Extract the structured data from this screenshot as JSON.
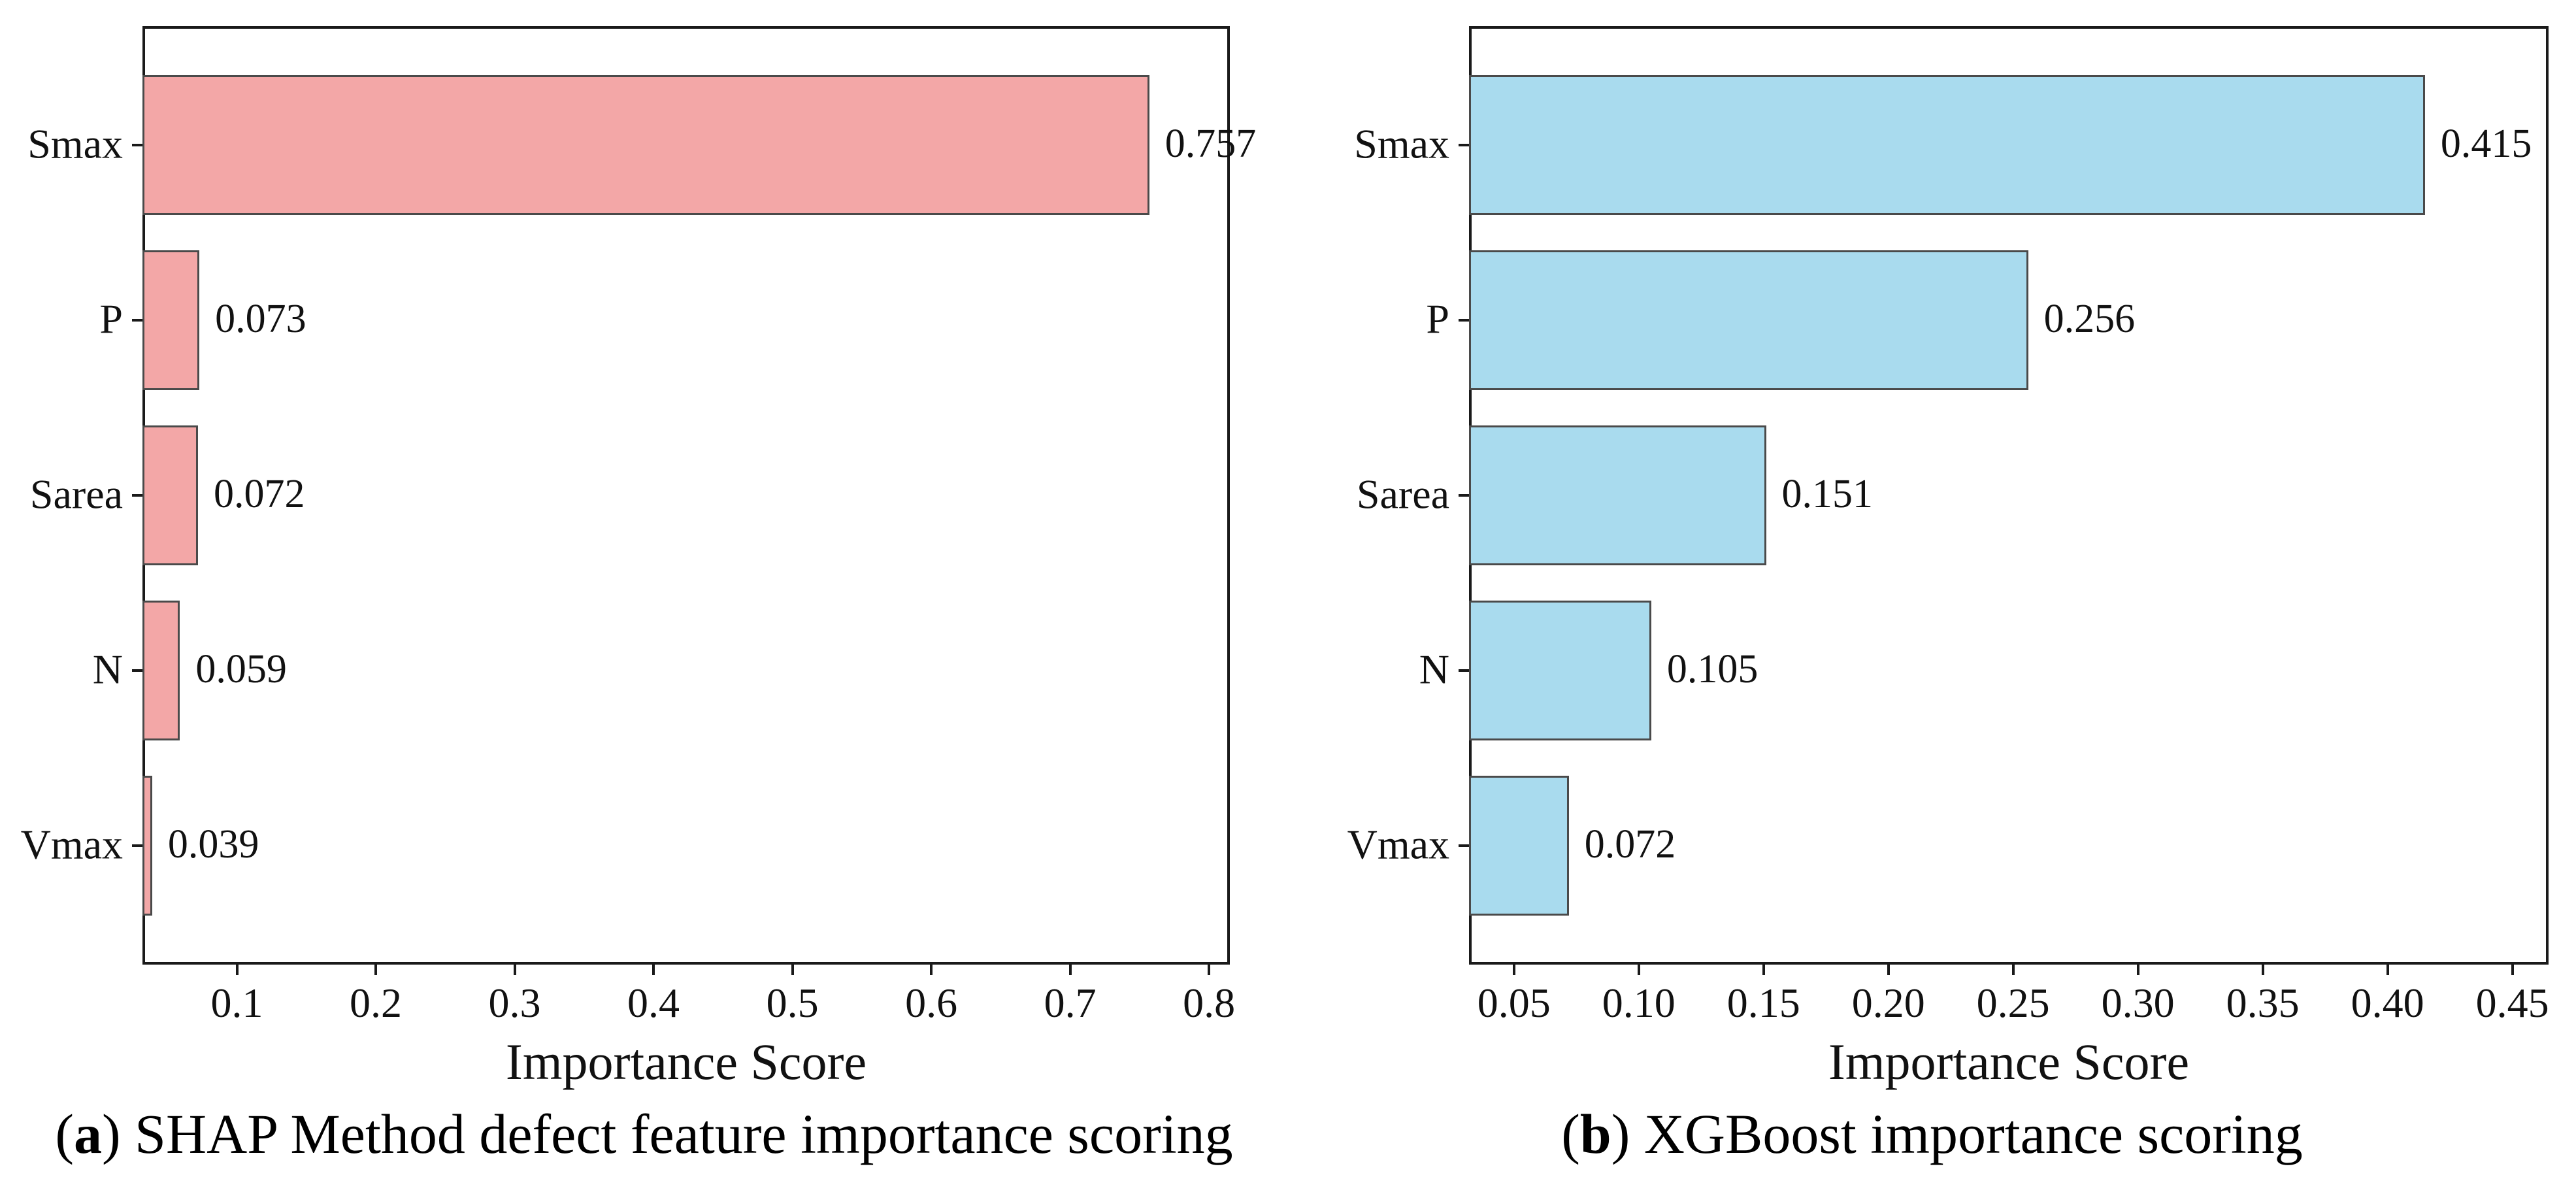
{
  "figure": {
    "background": "#ffffff",
    "text_color": "#111111",
    "spine_color": "#1a1a1a"
  },
  "chart_data": [
    {
      "id": "a",
      "type": "bar",
      "orientation": "horizontal",
      "title": "",
      "categories": [
        "Smax",
        "P",
        "Sarea",
        "N",
        "Vmax"
      ],
      "values": [
        0.757,
        0.073,
        0.072,
        0.059,
        0.039
      ],
      "value_labels": [
        "0.757",
        "0.073",
        "0.072",
        "0.059",
        "0.039"
      ],
      "xlabel": "Importance Score",
      "ylabel": "",
      "xticks": [
        0.1,
        0.2,
        0.3,
        0.4,
        0.5,
        0.6,
        0.7,
        0.8
      ],
      "xtick_labels": [
        "0.1",
        "0.2",
        "0.3",
        "0.4",
        "0.5",
        "0.6",
        "0.7",
        "0.8"
      ],
      "xlim": [
        0.032,
        0.815
      ],
      "grid": false,
      "legend_position": "none",
      "bar_color": "#F3A7A7",
      "bar_edge_color": "#4A4A4A",
      "caption": {
        "open": "(",
        "letter": "a",
        "close": ")",
        "text": " SHAP Method defect feature importance scoring"
      }
    },
    {
      "id": "b",
      "type": "bar",
      "orientation": "horizontal",
      "title": "",
      "categories": [
        "Smax",
        "P",
        "Sarea",
        "N",
        "Vmax"
      ],
      "values": [
        0.415,
        0.256,
        0.151,
        0.105,
        0.072
      ],
      "value_labels": [
        "0.415",
        "0.256",
        "0.151",
        "0.105",
        "0.072"
      ],
      "xlabel": "Importance Score",
      "ylabel": "",
      "xticks": [
        0.05,
        0.1,
        0.15,
        0.2,
        0.25,
        0.3,
        0.35,
        0.4,
        0.45
      ],
      "xtick_labels": [
        "0.05",
        "0.10",
        "0.15",
        "0.20",
        "0.25",
        "0.30",
        "0.35",
        "0.40",
        "0.45"
      ],
      "xlim": [
        0.032,
        0.4645
      ],
      "grid": false,
      "legend_position": "none",
      "bar_color": "#A9DBEE",
      "bar_edge_color": "#4A4A4A",
      "caption": {
        "open": "(",
        "letter": "b",
        "close": ")",
        "text": " XGBoost importance scoring"
      }
    }
  ]
}
